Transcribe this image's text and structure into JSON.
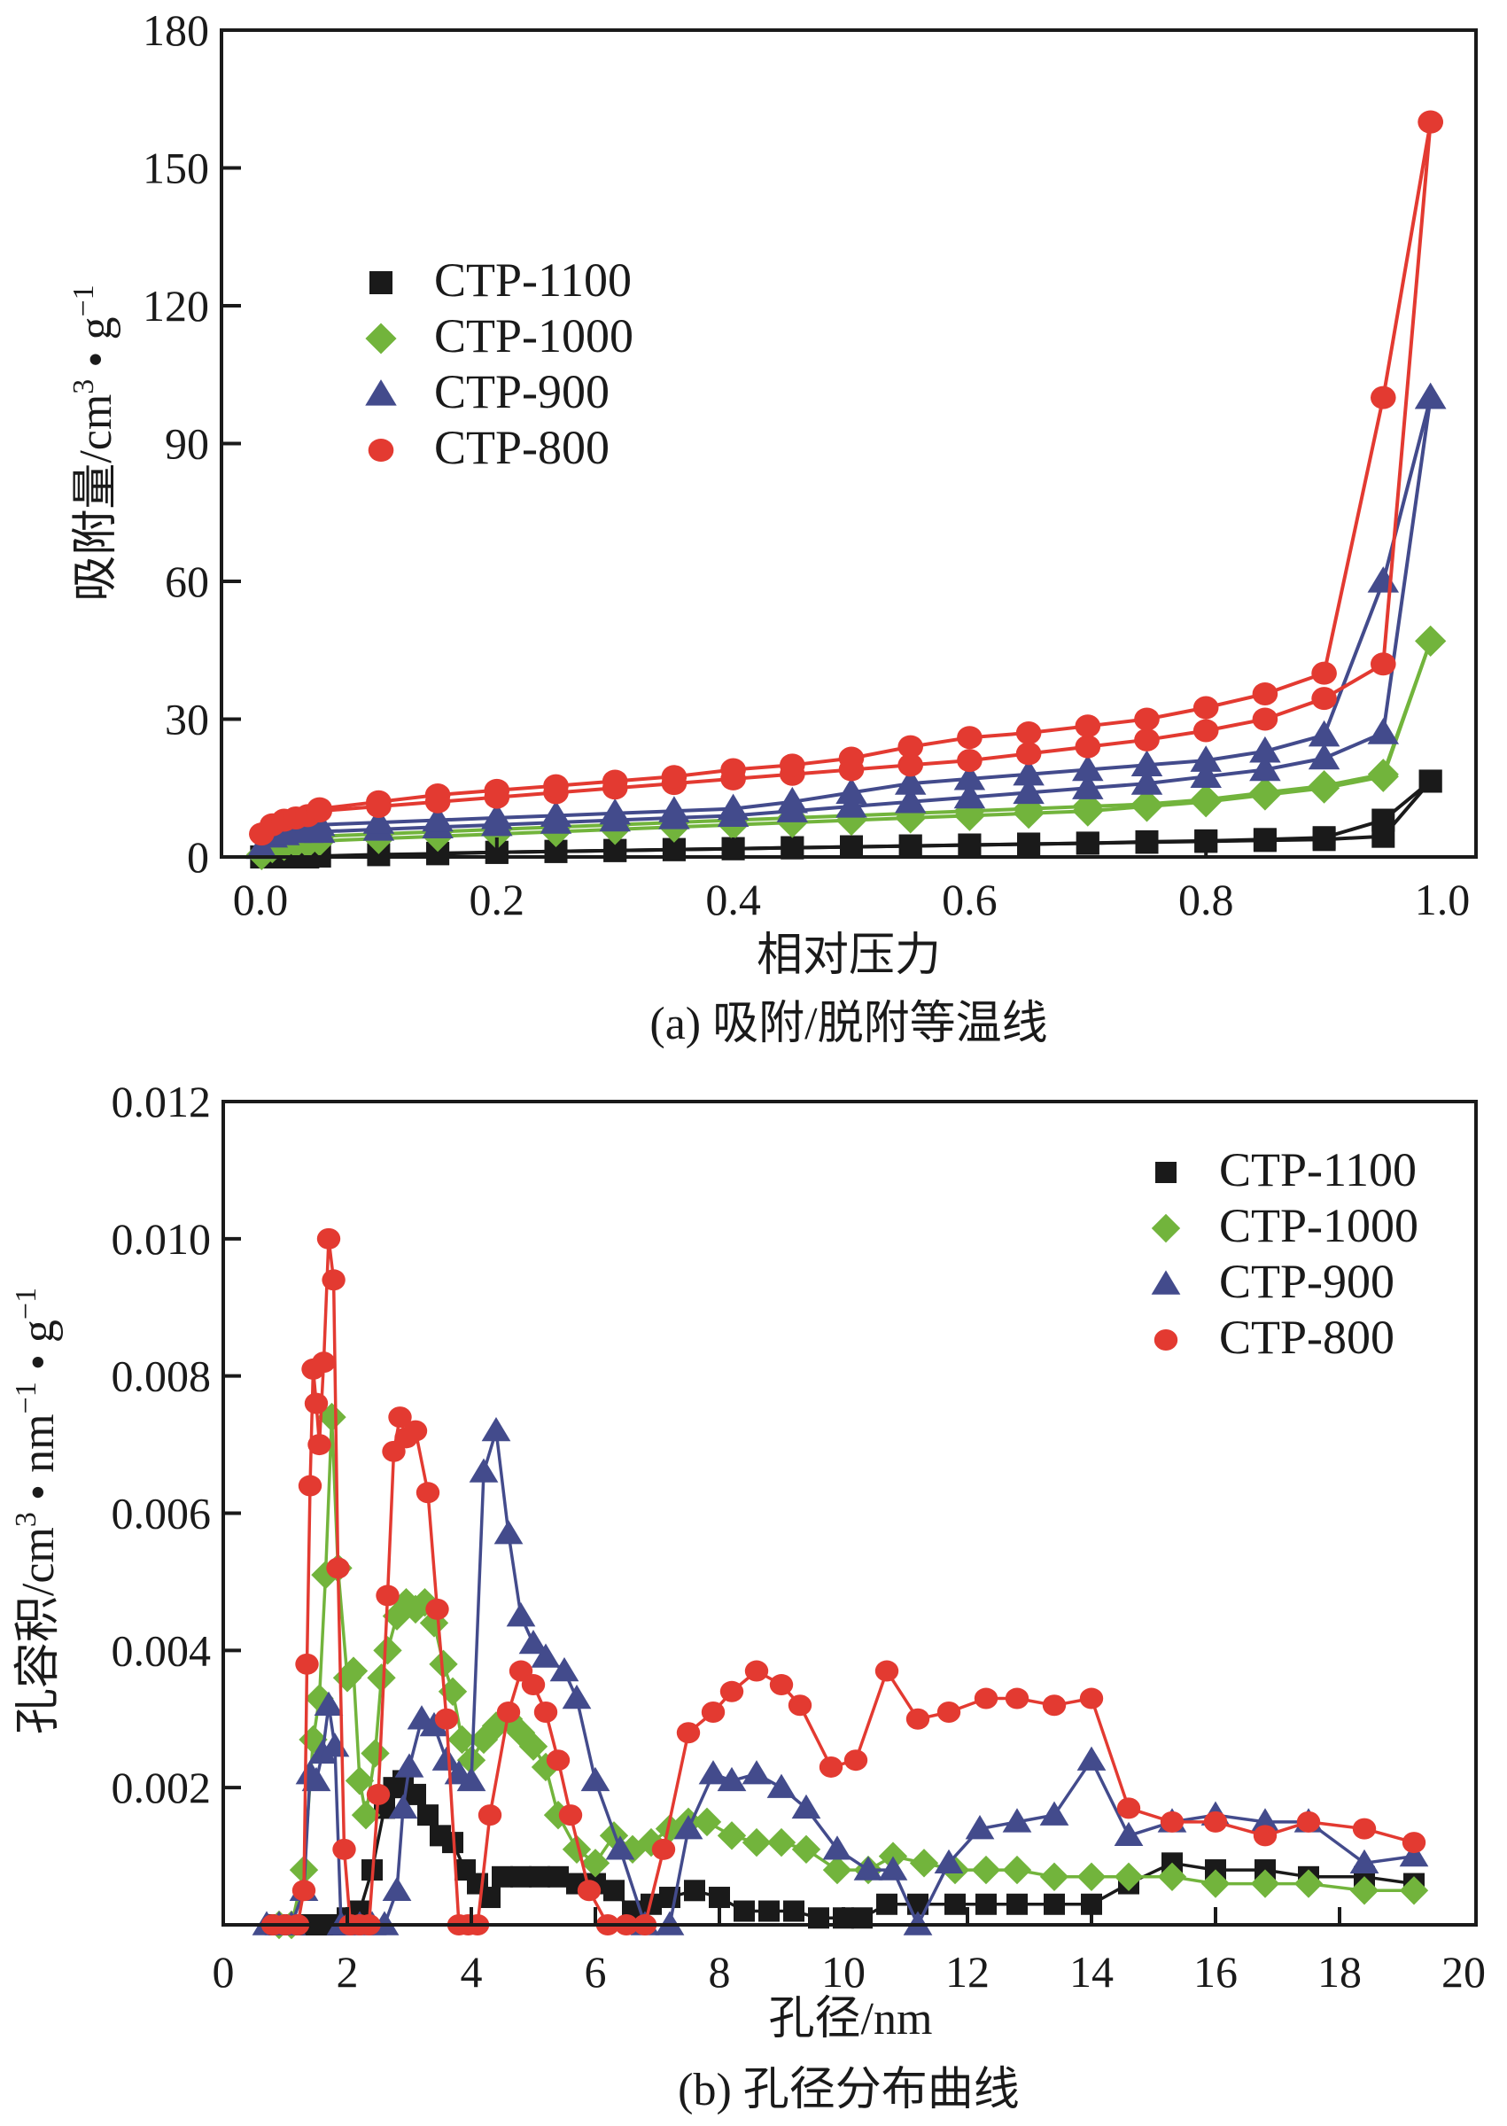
{
  "chart_data": [
    {
      "id": "a",
      "type": "line",
      "caption": "(a) 吸附/脱附等温线",
      "title": "",
      "xlabel": "相对压力",
      "ylabel": "吸附量/cm³·g⁻¹",
      "ylabel_parts": {
        "main": "吸附量/cm",
        "sup1": "3",
        "mid": " • g",
        "sup2": "−1"
      },
      "xlim": [
        0.0,
        1.0
      ],
      "ylim": [
        0,
        180
      ],
      "xticks": [
        "0.0",
        "0.2",
        "0.4",
        "0.6",
        "0.8",
        "1.0"
      ],
      "xtick_values": [
        0.0,
        0.2,
        0.4,
        0.6,
        0.8,
        1.0
      ],
      "yticks": [
        "0",
        "30",
        "60",
        "90",
        "120",
        "150",
        "180"
      ],
      "ytick_values": [
        0,
        30,
        60,
        90,
        120,
        150,
        180
      ],
      "grid": false,
      "legend_position": "upper-left",
      "series": [
        {
          "name": "CTP-1100",
          "color": "#1a1a1a",
          "marker": "square",
          "adsorption": {
            "x": [
              0.001,
              0.01,
              0.02,
              0.03,
              0.04,
              0.05,
              0.1,
              0.15,
              0.2,
              0.25,
              0.3,
              0.35,
              0.4,
              0.45,
              0.5,
              0.55,
              0.6,
              0.65,
              0.7,
              0.75,
              0.8,
              0.85,
              0.9,
              0.95,
              0.99
            ],
            "y": [
              0,
              0,
              0,
              0,
              0,
              0.2,
              0.5,
              0.7,
              1.0,
              1.2,
              1.4,
              1.6,
              1.8,
              2.0,
              2.2,
              2.4,
              2.6,
              2.8,
              3.0,
              3.2,
              3.4,
              3.6,
              3.8,
              4.5,
              16.5
            ]
          },
          "desorption": {
            "x": [
              0.99,
              0.95,
              0.9,
              0.85,
              0.8,
              0.75,
              0.7,
              0.65,
              0.6,
              0.55,
              0.5,
              0.45,
              0.4,
              0.35,
              0.3,
              0.25,
              0.2,
              0.15
            ],
            "y": [
              16.5,
              8.0,
              4.2,
              3.8,
              3.5,
              3.3,
              3.0,
              2.8,
              2.6,
              2.4,
              2.2,
              2.0,
              1.8,
              1.6,
              1.4,
              1.2,
              1.0,
              0.8
            ]
          }
        },
        {
          "name": "CTP-1000",
          "color": "#72b43c",
          "marker": "diamond",
          "adsorption": {
            "x": [
              0.001,
              0.01,
              0.02,
              0.03,
              0.04,
              0.05,
              0.1,
              0.15,
              0.2,
              0.25,
              0.3,
              0.35,
              0.4,
              0.45,
              0.5,
              0.55,
              0.6,
              0.65,
              0.7,
              0.75,
              0.8,
              0.85,
              0.9,
              0.95,
              0.99
            ],
            "y": [
              0.5,
              2.0,
              2.5,
              3.0,
              3.0,
              3.5,
              4.0,
              4.5,
              5.0,
              5.5,
              6.0,
              6.5,
              7.0,
              7.5,
              8.0,
              8.5,
              9.0,
              9.5,
              10.0,
              11.0,
              12.0,
              13.5,
              15.0,
              17.5,
              47
            ]
          },
          "desorption": {
            "x": [
              0.99,
              0.95,
              0.9,
              0.85,
              0.8,
              0.75,
              0.7,
              0.65,
              0.6,
              0.55,
              0.5,
              0.45,
              0.4,
              0.35,
              0.3,
              0.25,
              0.2,
              0.15,
              0.1,
              0.05,
              0.04
            ],
            "y": [
              47,
              18,
              15.5,
              14,
              12.5,
              11.5,
              11,
              10.5,
              10,
              9.5,
              9,
              8.5,
              8,
              7.5,
              7,
              6.5,
              6,
              5.5,
              5,
              4.5,
              4
            ]
          }
        },
        {
          "name": "CTP-900",
          "color": "#434b8c",
          "marker": "triangle",
          "adsorption": {
            "x": [
              0.001,
              0.01,
              0.02,
              0.03,
              0.04,
              0.05,
              0.1,
              0.15,
              0.2,
              0.25,
              0.3,
              0.35,
              0.4,
              0.45,
              0.5,
              0.55,
              0.6,
              0.65,
              0.7,
              0.75,
              0.8,
              0.85,
              0.9,
              0.95,
              0.99
            ],
            "y": [
              2.0,
              4.5,
              5.0,
              5.5,
              5.5,
              5.5,
              6.0,
              6.5,
              7.0,
              7.5,
              8.0,
              8.5,
              9.0,
              10.0,
              11.0,
              12.0,
              13.0,
              14.0,
              15.0,
              16.0,
              17.5,
              19.0,
              21.5,
              27.0,
              100
            ]
          },
          "desorption": {
            "x": [
              0.99,
              0.95,
              0.9,
              0.85,
              0.8,
              0.75,
              0.7,
              0.65,
              0.6,
              0.55,
              0.5,
              0.45,
              0.4,
              0.35,
              0.3,
              0.25,
              0.2,
              0.15,
              0.1,
              0.05,
              0.04
            ],
            "y": [
              100,
              60,
              26.5,
              23,
              21,
              20,
              19,
              18,
              17,
              16,
              14,
              12,
              10.5,
              10,
              9.5,
              9,
              8.5,
              8,
              7.5,
              7,
              6.5
            ]
          }
        },
        {
          "name": "CTP-800",
          "color": "#e33a31",
          "marker": "circle",
          "adsorption": {
            "x": [
              0.001,
              0.01,
              0.02,
              0.03,
              0.04,
              0.05,
              0.1,
              0.15,
              0.2,
              0.25,
              0.3,
              0.35,
              0.4,
              0.45,
              0.5,
              0.55,
              0.6,
              0.65,
              0.7,
              0.75,
              0.8,
              0.85,
              0.9,
              0.95,
              0.99
            ],
            "y": [
              5,
              7,
              8,
              8.5,
              9,
              10,
              11,
              12,
              13,
              14,
              15,
              16,
              17,
              18,
              19,
              20,
              21,
              22.5,
              24,
              25.5,
              27.5,
              30,
              34.5,
              42,
              160
            ]
          },
          "desorption": {
            "x": [
              0.99,
              0.95,
              0.9,
              0.85,
              0.8,
              0.75,
              0.7,
              0.65,
              0.6,
              0.55,
              0.5,
              0.45,
              0.4,
              0.35,
              0.3,
              0.25,
              0.2,
              0.15,
              0.1,
              0.05
            ],
            "y": [
              160,
              100,
              40,
              35.5,
              32.5,
              30,
              28.5,
              27,
              26,
              24,
              21.5,
              20,
              19,
              17.5,
              16.5,
              15.5,
              14.5,
              13.5,
              12,
              10.5
            ]
          }
        }
      ]
    },
    {
      "id": "b",
      "type": "line",
      "caption": "(b) 孔径分布曲线",
      "title": "",
      "xlabel": "孔径/nm",
      "ylabel": "孔容积/cm³·nm⁻¹·g⁻¹",
      "ylabel_parts": {
        "main": "孔容积/cm",
        "sup1": "3",
        "mid": " • nm",
        "sup2": "−1",
        "mid2": " • g",
        "sup3": "−1"
      },
      "xlim": [
        0,
        20
      ],
      "ylim": [
        0,
        0.012
      ],
      "xticks": [
        "0",
        "2",
        "4",
        "6",
        "8",
        "10",
        "12",
        "14",
        "16",
        "18",
        "20"
      ],
      "xtick_values": [
        0,
        2,
        4,
        6,
        8,
        10,
        12,
        14,
        16,
        18,
        20
      ],
      "yticks": [
        "0.002",
        "0.004",
        "0.006",
        "0.008",
        "0.010",
        "0.012"
      ],
      "ytick_values": [
        0.002,
        0.004,
        0.006,
        0.008,
        0.01,
        0.012
      ],
      "grid": false,
      "legend_position": "upper-right",
      "series": [
        {
          "name": "CTP-1100",
          "color": "#1a1a1a",
          "marker": "square",
          "x": [
            0.9,
            1.2,
            1.5,
            1.8,
            2.0,
            2.2,
            2.4,
            2.6,
            2.75,
            2.9,
            3.1,
            3.3,
            3.5,
            3.7,
            3.9,
            4.1,
            4.3,
            4.5,
            4.8,
            5.1,
            5.4,
            5.7,
            6.0,
            6.3,
            6.6,
            6.9,
            7.2,
            7.6,
            8.0,
            8.4,
            8.8,
            9.2,
            9.6,
            10.0,
            10.3,
            10.7,
            11.2,
            11.8,
            12.3,
            12.8,
            13.4,
            14.0,
            14.6,
            15.3,
            16.0,
            16.8,
            17.5,
            18.4,
            19.2
          ],
          "y": [
            0,
            0,
            0,
            0,
            0.0001,
            0.0002,
            0.0008,
            0.0017,
            0.002,
            0.0021,
            0.0019,
            0.0016,
            0.0013,
            0.0012,
            0.0008,
            0.0006,
            0.0004,
            0.0007,
            0.0007,
            0.0007,
            0.0007,
            0.0006,
            0.0006,
            0.0005,
            0.0002,
            0.0003,
            0.0004,
            0.0005,
            0.0004,
            0.0002,
            0.0002,
            0.0002,
            0.0001,
            0.0001,
            0.0001,
            0.0003,
            0.0003,
            0.0003,
            0.0003,
            0.0003,
            0.0003,
            0.0003,
            0.0006,
            0.0009,
            0.0008,
            0.0008,
            0.0007,
            0.0007,
            0.0006
          ]
        },
        {
          "name": "CTP-1000",
          "color": "#72b43c",
          "marker": "diamond",
          "x": [
            0.9,
            1.1,
            1.3,
            1.45,
            1.55,
            1.65,
            1.75,
            1.85,
            2.0,
            2.1,
            2.2,
            2.3,
            2.45,
            2.55,
            2.65,
            2.8,
            2.95,
            3.1,
            3.25,
            3.4,
            3.55,
            3.7,
            3.85,
            4.0,
            4.2,
            4.4,
            4.6,
            4.8,
            5.0,
            5.2,
            5.4,
            5.7,
            6.0,
            6.3,
            6.6,
            6.9,
            7.2,
            7.5,
            7.8,
            8.2,
            8.6,
            9.0,
            9.4,
            9.9,
            10.4,
            10.8,
            11.3,
            11.8,
            12.3,
            12.8,
            13.4,
            14.0,
            14.6,
            15.3,
            16.0,
            16.8,
            17.5,
            18.4,
            19.2
          ],
          "y": [
            0,
            0,
            0.0008,
            0.0027,
            0.0033,
            0.0051,
            0.0074,
            0.0052,
            0.0036,
            0.0037,
            0.0021,
            0.0016,
            0.0025,
            0.0036,
            0.004,
            0.0045,
            0.0047,
            0.0046,
            0.0047,
            0.0044,
            0.0038,
            0.0034,
            0.0027,
            0.0024,
            0.0027,
            0.0029,
            0.003,
            0.0028,
            0.0026,
            0.0023,
            0.0016,
            0.0011,
            0.0009,
            0.0013,
            0.0011,
            0.0012,
            0.0014,
            0.0015,
            0.0015,
            0.0013,
            0.0012,
            0.0012,
            0.0011,
            0.0008,
            0.0008,
            0.001,
            0.0009,
            0.0008,
            0.0008,
            0.0008,
            0.0007,
            0.0007,
            0.0007,
            0.0007,
            0.0006,
            0.0006,
            0.0006,
            0.0005,
            0.0005
          ]
        },
        {
          "name": "CTP-900",
          "color": "#434b8c",
          "marker": "triangle",
          "x": [
            0.7,
            0.9,
            1.1,
            1.3,
            1.4,
            1.5,
            1.6,
            1.7,
            1.8,
            1.9,
            2.0,
            2.2,
            2.4,
            2.6,
            2.8,
            2.9,
            3.0,
            3.2,
            3.4,
            3.6,
            3.8,
            4.0,
            4.2,
            4.4,
            4.6,
            4.8,
            5.0,
            5.2,
            5.5,
            5.7,
            6.0,
            6.4,
            6.8,
            7.2,
            7.5,
            7.9,
            8.2,
            8.6,
            9.0,
            9.4,
            9.9,
            10.4,
            10.8,
            11.2,
            11.7,
            12.2,
            12.8,
            13.4,
            14.0,
            14.6,
            15.3,
            16.0,
            16.8,
            17.5,
            18.4,
            19.2
          ],
          "y": [
            0,
            0,
            0,
            0.0005,
            0.0022,
            0.0021,
            0.0025,
            0.0032,
            0.0026,
            0,
            0,
            0,
            0,
            0,
            0.0005,
            0.0017,
            0.0023,
            0.003,
            0.0029,
            0.0024,
            0.0022,
            0.0021,
            0.0066,
            0.0072,
            0.0057,
            0.0045,
            0.0041,
            0.0039,
            0.0037,
            0.0033,
            0.0021,
            0.0011,
            0,
            0,
            0.0014,
            0.0022,
            0.0021,
            0.0022,
            0.002,
            0.0017,
            0.0011,
            0.0008,
            0.0008,
            0,
            0.0009,
            0.0014,
            0.0015,
            0.0016,
            0.0024,
            0.0013,
            0.0015,
            0.0016,
            0.0015,
            0.0015,
            0.0009,
            0.001
          ]
        },
        {
          "name": "CTP-800",
          "color": "#e33a31",
          "marker": "circle",
          "x": [
            0.8,
            1.0,
            1.2,
            1.3,
            1.35,
            1.4,
            1.45,
            1.5,
            1.55,
            1.62,
            1.7,
            1.78,
            1.85,
            1.95,
            2.05,
            2.2,
            2.35,
            2.5,
            2.65,
            2.75,
            2.85,
            2.95,
            3.1,
            3.3,
            3.45,
            3.6,
            3.8,
            3.95,
            4.1,
            4.3,
            4.6,
            4.8,
            5.0,
            5.2,
            5.4,
            5.6,
            5.9,
            6.2,
            6.5,
            6.8,
            7.1,
            7.5,
            7.9,
            8.2,
            8.6,
            9.0,
            9.3,
            9.8,
            10.2,
            10.7,
            11.2,
            11.7,
            12.3,
            12.8,
            13.4,
            14.0,
            14.6,
            15.3,
            16.0,
            16.8,
            17.5,
            18.4,
            19.2
          ],
          "y": [
            0,
            0,
            0,
            0.0005,
            0.0038,
            0.0064,
            0.0081,
            0.0076,
            0.007,
            0.0082,
            0.01,
            0.0094,
            0.0052,
            0.0011,
            0,
            0,
            0,
            0.0019,
            0.0048,
            0.0069,
            0.0074,
            0.0071,
            0.0072,
            0.0063,
            0.0046,
            0.003,
            0,
            0,
            0,
            0.0016,
            0.0031,
            0.0037,
            0.0035,
            0.0031,
            0.0024,
            0.0016,
            0.0005,
            0,
            0,
            0,
            0.0011,
            0.0028,
            0.0031,
            0.0034,
            0.0037,
            0.0035,
            0.0032,
            0.0023,
            0.0024,
            0.0037,
            0.003,
            0.0031,
            0.0033,
            0.0033,
            0.0032,
            0.0033,
            0.0017,
            0.0015,
            0.0015,
            0.0013,
            0.0015,
            0.0014,
            0.0012
          ]
        }
      ]
    }
  ]
}
